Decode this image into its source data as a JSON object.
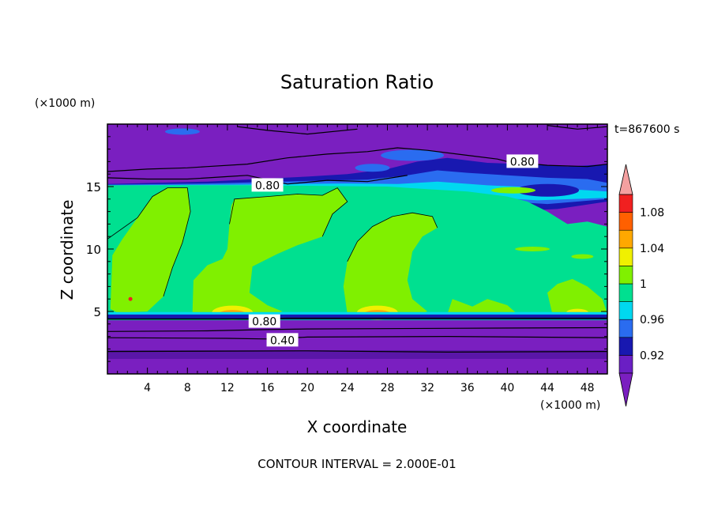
{
  "chart_data": {
    "type": "heatmap",
    "title": "Saturation Ratio",
    "xlabel": "X coordinate",
    "ylabel": "Z coordinate",
    "x_units": "(×1000 m)",
    "z_units": "(×1000 m)",
    "time_label": "t=867600 s",
    "footer": "CONTOUR INTERVAL = 2.000E-01",
    "xlim": [
      0,
      50
    ],
    "ylim": [
      0,
      20
    ],
    "x_ticks": [
      4,
      8,
      12,
      16,
      20,
      24,
      28,
      32,
      36,
      40,
      44,
      48
    ],
    "x_tick_labels": [
      "4",
      "8",
      "12",
      "16",
      "20",
      "24",
      "28",
      "32",
      "36",
      "40",
      "44",
      "48"
    ],
    "y_ticks": [
      5,
      10,
      15
    ],
    "y_tick_labels": [
      "5",
      "10",
      "15"
    ],
    "contour_labels": [
      {
        "text": "0.80",
        "x": 41.5,
        "z": 17.0
      },
      {
        "text": "0.80",
        "x": 16.0,
        "z": 15.1
      },
      {
        "text": "0.80",
        "x": 15.7,
        "z": 4.2
      },
      {
        "text": "0.40",
        "x": 17.5,
        "z": 2.7
      }
    ],
    "colorbar": {
      "levels": [
        0.9,
        0.92,
        0.94,
        0.96,
        0.98,
        1.0,
        1.02,
        1.04,
        1.06,
        1.08,
        1.1
      ],
      "labels": [
        "0.92",
        "0.96",
        "1",
        "1.04",
        "1.08"
      ],
      "label_values": [
        0.92,
        0.96,
        1.0,
        1.04,
        1.08
      ],
      "colors": [
        "#6a1fc4",
        "#1818b0",
        "#2a6cf0",
        "#00d8f0",
        "#00e090",
        "#80f000",
        "#f0f000",
        "#ffa800",
        "#ff6000",
        "#f02020"
      ],
      "under_color": "#7a1fc0",
      "over_color": "#f4a0a0"
    },
    "colors": {
      "violet": "#7a1fc0",
      "deep_violet": "#5a16a8",
      "navy": "#1818b0",
      "blue": "#2a6cf0",
      "cyan": "#00d8f0",
      "teal_green": "#00e090",
      "lime": "#80f000",
      "yellow": "#f0f000",
      "orange": "#ffa800",
      "red_orange": "#ff6000",
      "red": "#f02020"
    }
  }
}
